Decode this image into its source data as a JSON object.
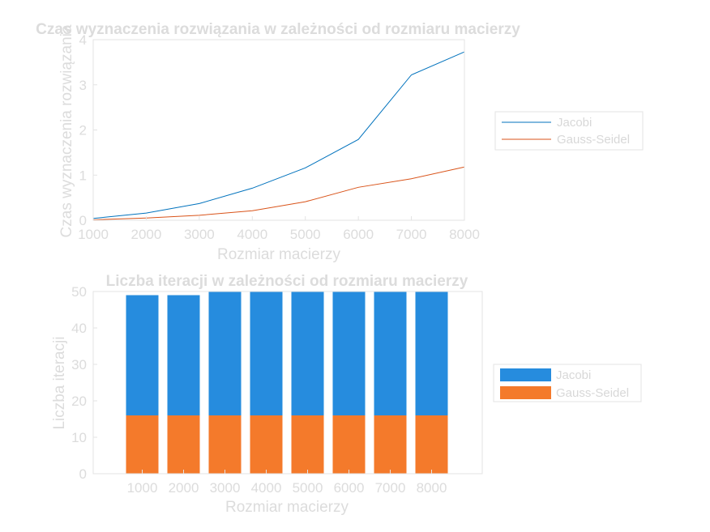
{
  "colors": {
    "jacobi_line": "#0072BD",
    "gauss_line": "#D95319",
    "jacobi_bar": "#268CDE",
    "gauss_bar": "#F47A2B"
  },
  "chart_data": [
    {
      "type": "line",
      "title": "Czas wyznaczenia rozwiązania w zależności od rozmiaru macierzy",
      "xlabel": "Rozmiar macierzy",
      "ylabel": "Czas wyznaczenia rozwiązania",
      "xlim": [
        1000,
        8000
      ],
      "ylim": [
        0,
        4
      ],
      "xticks": [
        "1000",
        "2000",
        "3000",
        "4000",
        "5000",
        "6000",
        "7000",
        "8000"
      ],
      "yticks": [
        "0",
        "1",
        "2",
        "3",
        "4"
      ],
      "x": [
        1000,
        2000,
        3000,
        4000,
        5000,
        6000,
        7000,
        8000
      ],
      "series": [
        {
          "name": "Jacobi",
          "values": [
            0.04,
            0.16,
            0.37,
            0.71,
            1.16,
            1.79,
            3.22,
            3.73
          ]
        },
        {
          "name": "Gauss-Seidel",
          "values": [
            0.01,
            0.05,
            0.11,
            0.21,
            0.41,
            0.73,
            0.92,
            1.18
          ]
        }
      ],
      "grid": false,
      "legend": "outside-right"
    },
    {
      "type": "bar",
      "title": "Liczba iteracji w zależności od rozmiaru macierzy",
      "xlabel": "Rozmiar macierzy",
      "ylabel": "Liczba iteracji",
      "ylim": [
        0,
        50
      ],
      "yticks": [
        "0",
        "10",
        "20",
        "30",
        "40",
        "50"
      ],
      "categories": [
        "1000",
        "2000",
        "3000",
        "4000",
        "5000",
        "6000",
        "7000",
        "8000"
      ],
      "series": [
        {
          "name": "Jacobi",
          "values": [
            49,
            49,
            50,
            50,
            50,
            50,
            50,
            50
          ]
        },
        {
          "name": "Gauss-Seidel",
          "values": [
            16,
            16,
            16,
            16,
            16,
            16,
            16,
            16
          ]
        }
      ],
      "grid": false,
      "legend": "outside-right"
    }
  ]
}
